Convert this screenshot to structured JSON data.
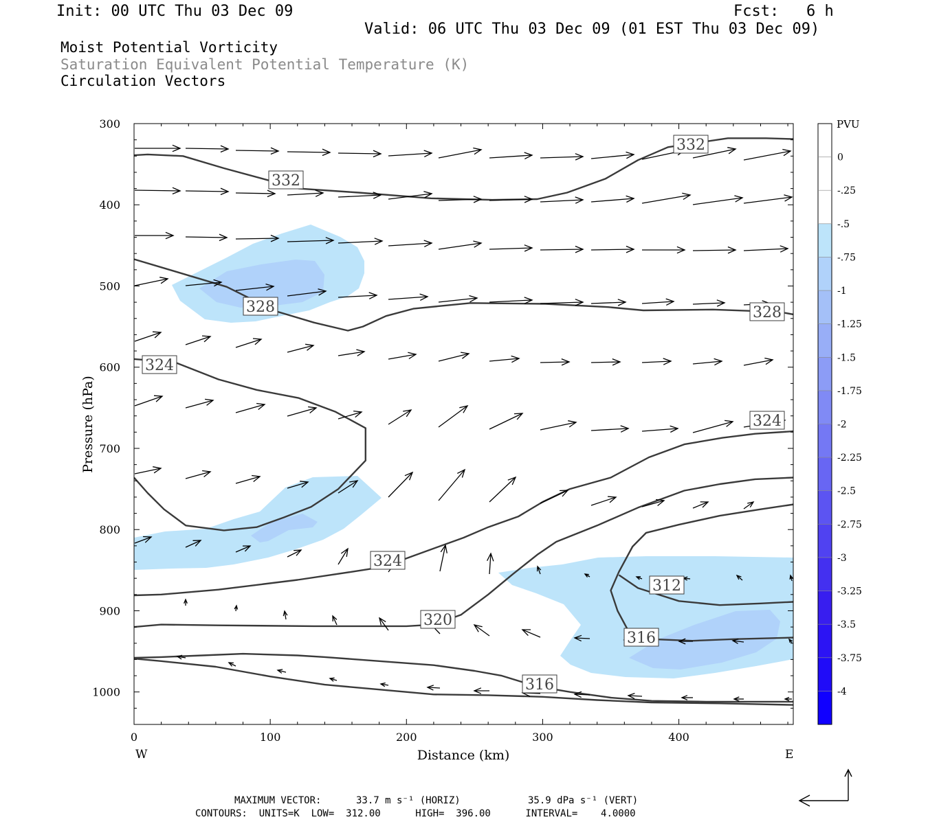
{
  "header": {
    "init": "Init: 00 UTC Thu 03 Dec 09",
    "fcst": "Fcst:   6 h",
    "valid": "Valid: 06 UTC Thu 03 Dec 09 (01 EST Thu 03 Dec 09)"
  },
  "fields": {
    "field1": "Moist Potential Vorticity",
    "field2": "Saturation Equivalent Potential Temperature (K)",
    "field3": "Circulation Vectors"
  },
  "footer": {
    "max_vector_label": "MAXIMUM VECTOR:",
    "horiz": "33.7 m s⁻¹ (HORIZ)",
    "vert": "35.9 dPa s⁻¹ (VERT)",
    "contours": "CONTOURS:  UNITS=K  LOW=  312.00      HIGH=  396.00      INTERVAL=    4.0000"
  },
  "chart_data": {
    "type": "heatmap",
    "xlabel": "Distance (km)",
    "ylabel": "Pressure (hPa)",
    "x_ticks": [
      0,
      100,
      200,
      300,
      400
    ],
    "y_ticks": [
      300,
      400,
      500,
      600,
      700,
      800,
      900,
      1000
    ],
    "xlim": [
      0,
      484
    ],
    "ylim": [
      300,
      1040
    ],
    "y_inverted": true,
    "left_end": "W",
    "right_end": "E",
    "colorbar": {
      "unit": "PVU",
      "labels": [
        "0",
        "-.25",
        "-.5",
        "-.75",
        "-1",
        "-1.25",
        "-1.5",
        "-1.75",
        "-2",
        "-2.25",
        "-2.5",
        "-2.75",
        "-3",
        "-3.25",
        "-3.5",
        "-3.75",
        "-4"
      ],
      "colors": [
        "#ffffff",
        "#ffffff",
        "#bde4fa",
        "#b0d2fa",
        "#a4c0f8",
        "#98aef7",
        "#8c9cf6",
        "#808af5",
        "#7478f4",
        "#6866f3",
        "#5c54f2",
        "#5042f1",
        "#4430f0",
        "#381eef",
        "#2c14f4",
        "#200cf8",
        "#1000ff"
      ]
    },
    "contour_labels": [
      "332",
      "332",
      "328",
      "328",
      "324",
      "324",
      "324",
      "320",
      "316",
      "316",
      "312"
    ],
    "contour_lines": [
      {
        "level": 332,
        "points": [
          [
            0,
            339
          ],
          [
            10,
            338
          ],
          [
            36,
            340
          ],
          [
            66,
            355
          ],
          [
            121,
            380
          ],
          [
            165,
            385
          ],
          [
            218,
            392
          ],
          [
            263,
            394
          ],
          [
            296,
            393
          ],
          [
            318,
            385
          ],
          [
            346,
            368
          ],
          [
            370,
            345
          ],
          [
            392,
            329
          ],
          [
            436,
            318
          ],
          [
            464,
            318
          ],
          [
            484,
            319
          ]
        ]
      },
      {
        "level": 328,
        "points": [
          [
            0,
            467
          ],
          [
            30,
            482
          ],
          [
            68,
            501
          ],
          [
            86,
            516
          ],
          [
            104,
            531
          ],
          [
            132,
            545
          ],
          [
            157,
            555
          ],
          [
            168,
            550
          ],
          [
            185,
            537
          ],
          [
            205,
            528
          ],
          [
            247,
            521
          ],
          [
            302,
            522
          ],
          [
            348,
            526
          ],
          [
            374,
            530
          ],
          [
            425,
            529
          ],
          [
            474,
            532
          ],
          [
            484,
            535
          ]
        ]
      },
      {
        "level": 324,
        "points": [
          [
            0,
            590
          ],
          [
            30,
            594
          ],
          [
            62,
            615
          ],
          [
            90,
            628
          ],
          [
            121,
            638
          ],
          [
            148,
            655
          ],
          [
            170,
            675
          ],
          [
            170,
            715
          ],
          [
            150,
            750
          ],
          [
            130,
            772
          ],
          [
            110,
            785
          ],
          [
            90,
            797
          ],
          [
            66,
            801
          ],
          [
            38,
            795
          ],
          [
            22,
            775
          ],
          [
            10,
            755
          ],
          [
            0,
            736
          ]
        ]
      },
      {
        "level": 324,
        "points": [
          [
            0,
            881
          ],
          [
            20,
            880
          ],
          [
            62,
            874
          ],
          [
            120,
            862
          ],
          [
            160,
            852
          ],
          [
            183,
            846
          ],
          [
            204,
            833
          ],
          [
            242,
            810
          ],
          [
            260,
            797
          ],
          [
            282,
            784
          ],
          [
            300,
            766
          ],
          [
            320,
            750
          ],
          [
            350,
            736
          ],
          [
            378,
            711
          ],
          [
            404,
            695
          ],
          [
            432,
            687
          ],
          [
            456,
            682
          ],
          [
            484,
            679
          ]
        ]
      },
      {
        "level": 320,
        "points": [
          [
            0,
            920
          ],
          [
            20,
            917
          ],
          [
            62,
            918
          ],
          [
            132,
            919
          ],
          [
            160,
            919
          ],
          [
            200,
            919
          ],
          [
            220,
            917
          ],
          [
            240,
            905
          ],
          [
            260,
            880
          ],
          [
            278,
            855
          ],
          [
            296,
            831
          ],
          [
            310,
            815
          ],
          [
            340,
            795
          ],
          [
            370,
            773
          ],
          [
            404,
            752
          ],
          [
            430,
            744
          ],
          [
            456,
            738
          ],
          [
            484,
            736
          ]
        ]
      },
      {
        "level": 316,
        "points": [
          [
            0,
            958
          ],
          [
            20,
            957
          ],
          [
            50,
            955
          ],
          [
            80,
            953
          ],
          [
            120,
            955
          ],
          [
            140,
            957
          ],
          [
            180,
            962
          ],
          [
            220,
            967
          ],
          [
            250,
            974
          ],
          [
            270,
            980
          ],
          [
            295,
            993
          ],
          [
            320,
            1000
          ],
          [
            350,
            1007
          ],
          [
            380,
            1011
          ],
          [
            420,
            1012
          ],
          [
            460,
            1012
          ],
          [
            484,
            1012
          ]
        ]
      },
      {
        "level": 316,
        "points": [
          [
            0,
            959
          ],
          [
            20,
            962
          ],
          [
            60,
            969
          ],
          [
            100,
            981
          ],
          [
            140,
            991
          ],
          [
            180,
            997
          ],
          [
            220,
            1003
          ],
          [
            260,
            1004
          ],
          [
            300,
            1006
          ],
          [
            340,
            1010
          ],
          [
            380,
            1013
          ],
          [
            430,
            1014
          ],
          [
            484,
            1016
          ]
        ]
      },
      {
        "level": 316,
        "points": [
          [
            484,
            769
          ],
          [
            460,
            775
          ],
          [
            430,
            783
          ],
          [
            400,
            794
          ],
          [
            376,
            804
          ],
          [
            366,
            821
          ],
          [
            356,
            852
          ],
          [
            350,
            875
          ],
          [
            355,
            900
          ],
          [
            362,
            922
          ],
          [
            380,
            935
          ],
          [
            410,
            937
          ],
          [
            440,
            935
          ],
          [
            484,
            933
          ]
        ]
      },
      {
        "level": 312,
        "points": [
          [
            356,
            856
          ],
          [
            370,
            872
          ],
          [
            400,
            888
          ],
          [
            430,
            893
          ],
          [
            460,
            891
          ],
          [
            484,
            889
          ]
        ]
      }
    ],
    "vector_max": {
      "horiz_m_s": 33.7,
      "vert_dPa_s": 35.9
    }
  }
}
